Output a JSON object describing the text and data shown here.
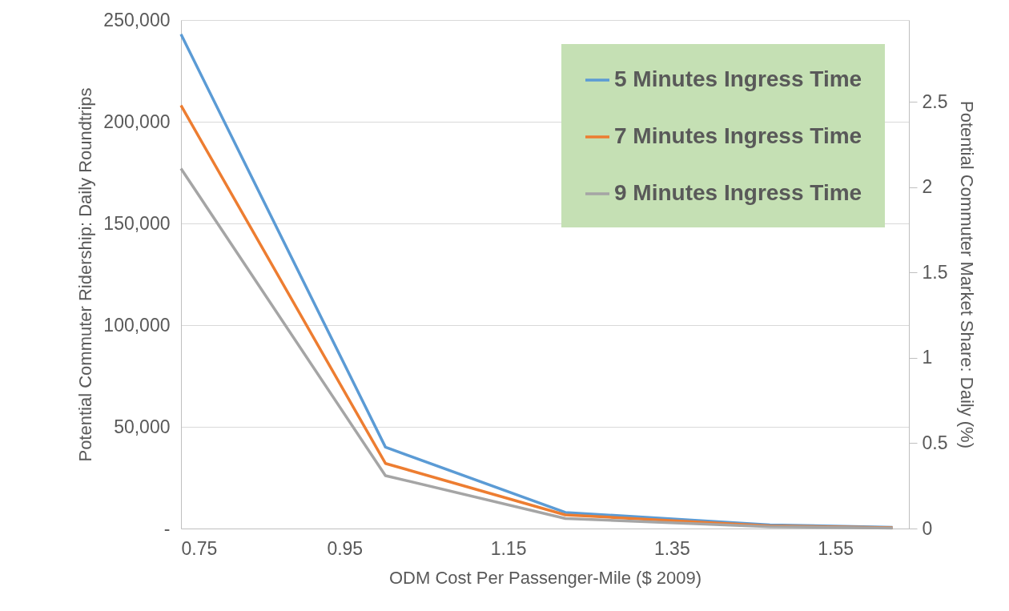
{
  "chart_data": {
    "type": "line",
    "xlabel": "ODM Cost Per Passenger-Mile ($ 2009)",
    "ylabel": "Potential Commuter Ridership: Daily Roundtrips",
    "y2label": "Potential Commuter Market Share: Daily (%)",
    "x": [
      0.75,
      1.0,
      1.22,
      1.47,
      1.62
    ],
    "series": [
      {
        "name": "5 Minutes Ingress Time",
        "color": "#5b9bd5",
        "values": [
          243000,
          40000,
          7900,
          1800,
          600
        ]
      },
      {
        "name": "7 Minutes Ingress Time",
        "color": "#ed7d31",
        "values": [
          208000,
          32000,
          6700,
          1300,
          400
        ]
      },
      {
        "name": "9 Minutes Ingress Time",
        "color": "#a5a5a5",
        "values": [
          177000,
          26000,
          4900,
          900,
          200
        ]
      }
    ],
    "xlim": [
      0.75,
      1.64
    ],
    "xticks": [
      0.75,
      0.95,
      1.15,
      1.35,
      1.55
    ],
    "ylim": [
      0,
      250000
    ],
    "yticks": [
      {
        "value": 0,
        "label": "-"
      },
      {
        "value": 50000,
        "label": "50,000"
      },
      {
        "value": 100000,
        "label": "100,000"
      },
      {
        "value": 150000,
        "label": "150,000"
      },
      {
        "value": 200000,
        "label": "200,000"
      },
      {
        "value": 250000,
        "label": "250,000"
      }
    ],
    "y2lim": [
      0,
      2.98
    ],
    "y2ticks": [
      0,
      0.5,
      1,
      1.5,
      2,
      2.5
    ],
    "grid": "y",
    "legend": "top right",
    "marker": "none",
    "line_style": "solid"
  }
}
